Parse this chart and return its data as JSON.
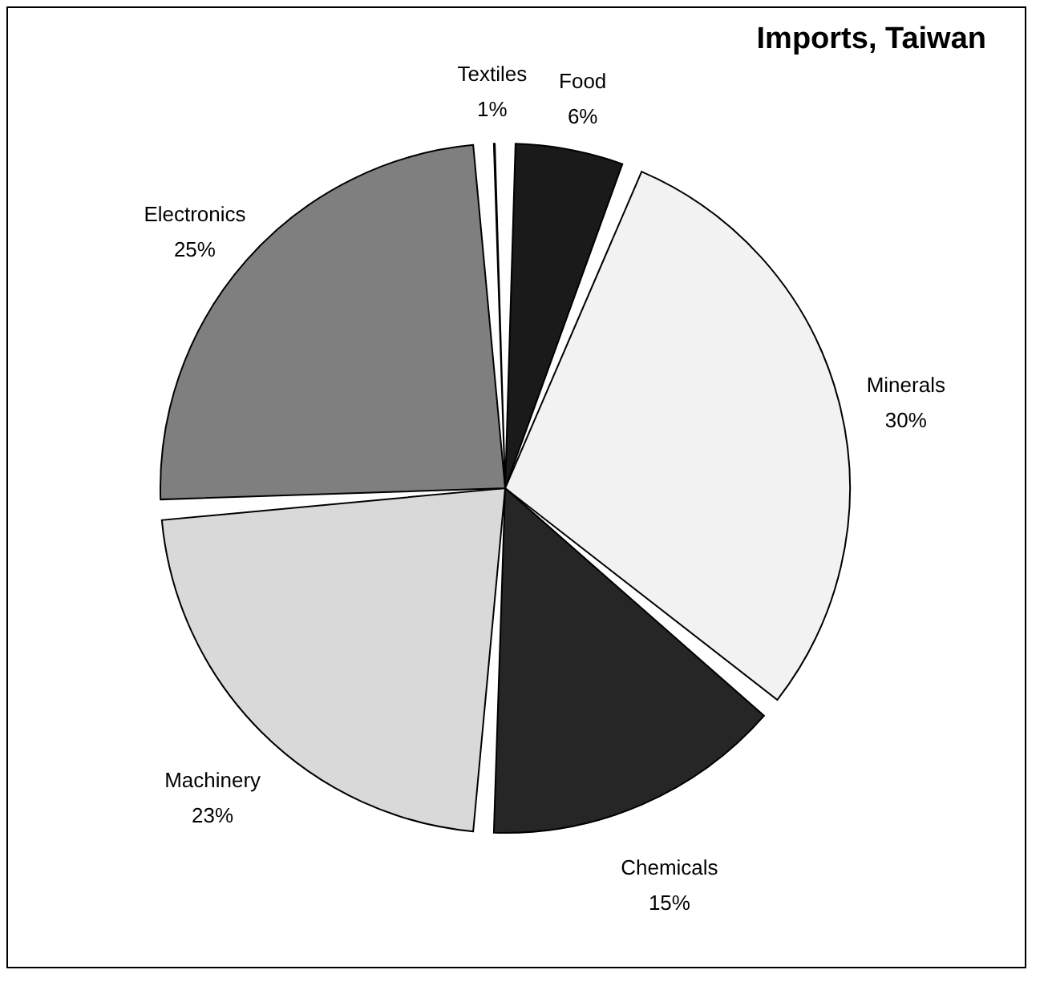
{
  "chart_data": {
    "type": "pie",
    "title": "Imports, Taiwan",
    "categories": [
      "Food",
      "Minerals",
      "Chemicals",
      "Machinery",
      "Electronics",
      "Textiles"
    ],
    "values": [
      6,
      30,
      15,
      23,
      25,
      1
    ],
    "value_labels": [
      "6%",
      "30%",
      "15%",
      "23%",
      "25%",
      "1%"
    ],
    "colors": [
      "#1a1a1a",
      "#f2f2f2",
      "#262626",
      "#d9d9d9",
      "#7f7f7f",
      "#bfbfbf"
    ],
    "legend": false
  }
}
